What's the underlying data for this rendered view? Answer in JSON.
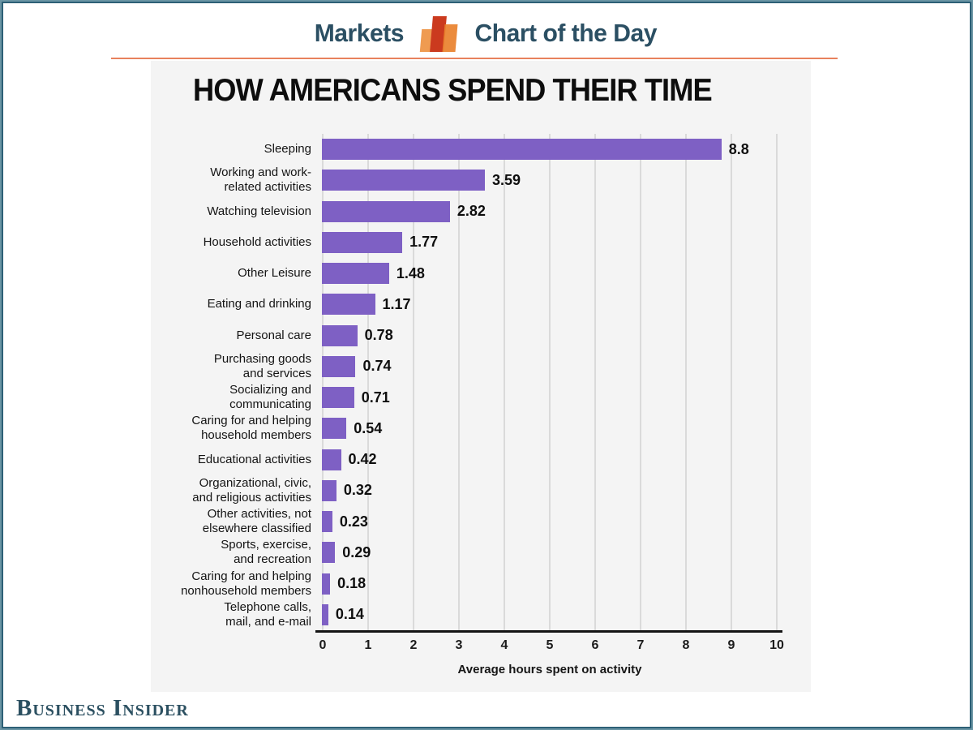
{
  "page": {
    "frame_color_outer": "#6a95a4",
    "frame_color_inner": "#2d6076",
    "background": "#ffffff"
  },
  "header": {
    "brand": "Markets",
    "title": "Chart of the Day",
    "icon": "bar-chart-icon",
    "text_color": "#2b4f63",
    "divider_color": "#e8825d",
    "icon_colors": [
      "#ef9b51",
      "#cb3a1e",
      "#e9812d"
    ]
  },
  "chart_data": {
    "type": "bar",
    "orientation": "horizontal",
    "title": "HOW AMERICANS SPEND THEIR TIME",
    "xlabel": "Average hours spent on activity",
    "xlim": [
      0,
      10
    ],
    "x_ticks": [
      "0",
      "1",
      "2",
      "3",
      "4",
      "5",
      "6",
      "7",
      "8",
      "9",
      "10"
    ],
    "grid": true,
    "bar_color": "#7e60c4",
    "panel_background": "#f4f4f4",
    "categories": [
      "Sleeping",
      "Working and work-\nrelated activities",
      "Watching television",
      "Household activities",
      "Other Leisure",
      "Eating and drinking",
      "Personal care",
      "Purchasing goods\nand services",
      "Socializing and\ncommunicating",
      "Caring for and helping\nhousehold members",
      "Educational activities",
      "Organizational, civic,\nand religious activities",
      "Other activities, not\nelsewhere classified",
      "Sports, exercise,\nand recreation",
      "Caring for and helping\nnonhousehold members",
      "Telephone calls,\nmail, and e-mail"
    ],
    "values": [
      8.8,
      3.59,
      2.82,
      1.77,
      1.48,
      1.17,
      0.78,
      0.74,
      0.71,
      0.54,
      0.42,
      0.32,
      0.23,
      0.29,
      0.18,
      0.14
    ],
    "value_labels": [
      "8.8",
      "3.59",
      "2.82",
      "1.77",
      "1.48",
      "1.17",
      "0.78",
      "0.74",
      "0.71",
      "0.54",
      "0.42",
      "0.32",
      "0.23",
      "0.29",
      "0.18",
      "0.14"
    ]
  },
  "footer": {
    "logo": "Business Insider"
  }
}
